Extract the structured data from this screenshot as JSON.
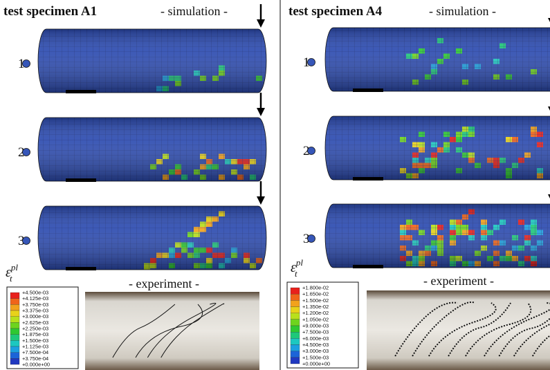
{
  "panels": [
    {
      "title": "test specimen A1",
      "simulation_label": "- simulation -",
      "steps": [
        "1",
        "2",
        "3"
      ],
      "symbol": {
        "base": "ε",
        "sub": "t",
        "sup": "pl"
      },
      "legend": [
        "+4.500e-03",
        "+4.125e-03",
        "+3.750e-03",
        "+3.375e-03",
        "+3.000e-03",
        "+2.625e-03",
        "+2.250e-03",
        "+1.875e-03",
        "+1.500e-03",
        "+1.125e-03",
        "+7.500e-04",
        "+3.750e-04",
        "+0.000e+00"
      ],
      "experiment_label": "- experiment -"
    },
    {
      "title": "test specimen A4",
      "simulation_label": "- simulation -",
      "steps": [
        "1",
        "2",
        "3"
      ],
      "symbol": {
        "base": "ε",
        "sub": "t",
        "sup": "pl"
      },
      "legend": [
        "+1.800e-02",
        "+1.650e-02",
        "+1.500e-02",
        "+1.350e-02",
        "+1.200e-02",
        "+1.050e-02",
        "+9.000e-03",
        "+7.500e-03",
        "+6.000e-03",
        "+4.500e-03",
        "+3.000e-03",
        "+1.500e-03",
        "+0.000e+00"
      ],
      "experiment_label": "- experiment -"
    }
  ]
}
